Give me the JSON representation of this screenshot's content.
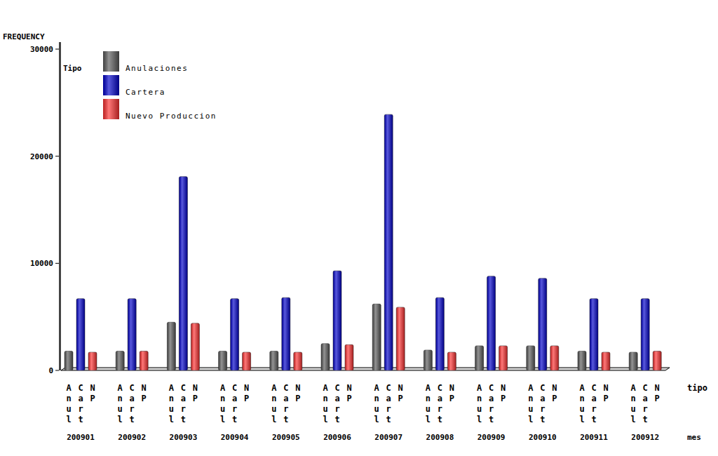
{
  "chart_data": {
    "type": "bar",
    "ylabel": "FREQUENCY",
    "xlabel": "mes",
    "sublabel_title": "tipo",
    "legend_title": "Tipo",
    "categories": [
      "200901",
      "200902",
      "200903",
      "200904",
      "200905",
      "200906",
      "200907",
      "200908",
      "200909",
      "200910",
      "200911",
      "200912"
    ],
    "subcategories": [
      "Anul",
      "Cart",
      "NP"
    ],
    "series": [
      {
        "name": "Anulaciones",
        "color": "#5a5a5a",
        "values": [
          1800,
          1800,
          4500,
          1800,
          1800,
          2500,
          6200,
          1900,
          2300,
          2300,
          1800,
          1700
        ]
      },
      {
        "name": "Cartera",
        "color": "#0000cc",
        "values": [
          6700,
          6700,
          18100,
          6700,
          6800,
          9300,
          23900,
          6800,
          8800,
          8600,
          6700,
          6700
        ]
      },
      {
        "name": "Nuevo Produccion",
        "color": "#ff3030",
        "values": [
          1700,
          1800,
          4400,
          1700,
          1700,
          2400,
          5900,
          1700,
          2300,
          2300,
          1700,
          1800
        ]
      }
    ],
    "ylim": [
      0,
      30000
    ],
    "yticks": [
      0,
      10000,
      20000,
      30000
    ],
    "grid": false,
    "legend": "top-left"
  }
}
